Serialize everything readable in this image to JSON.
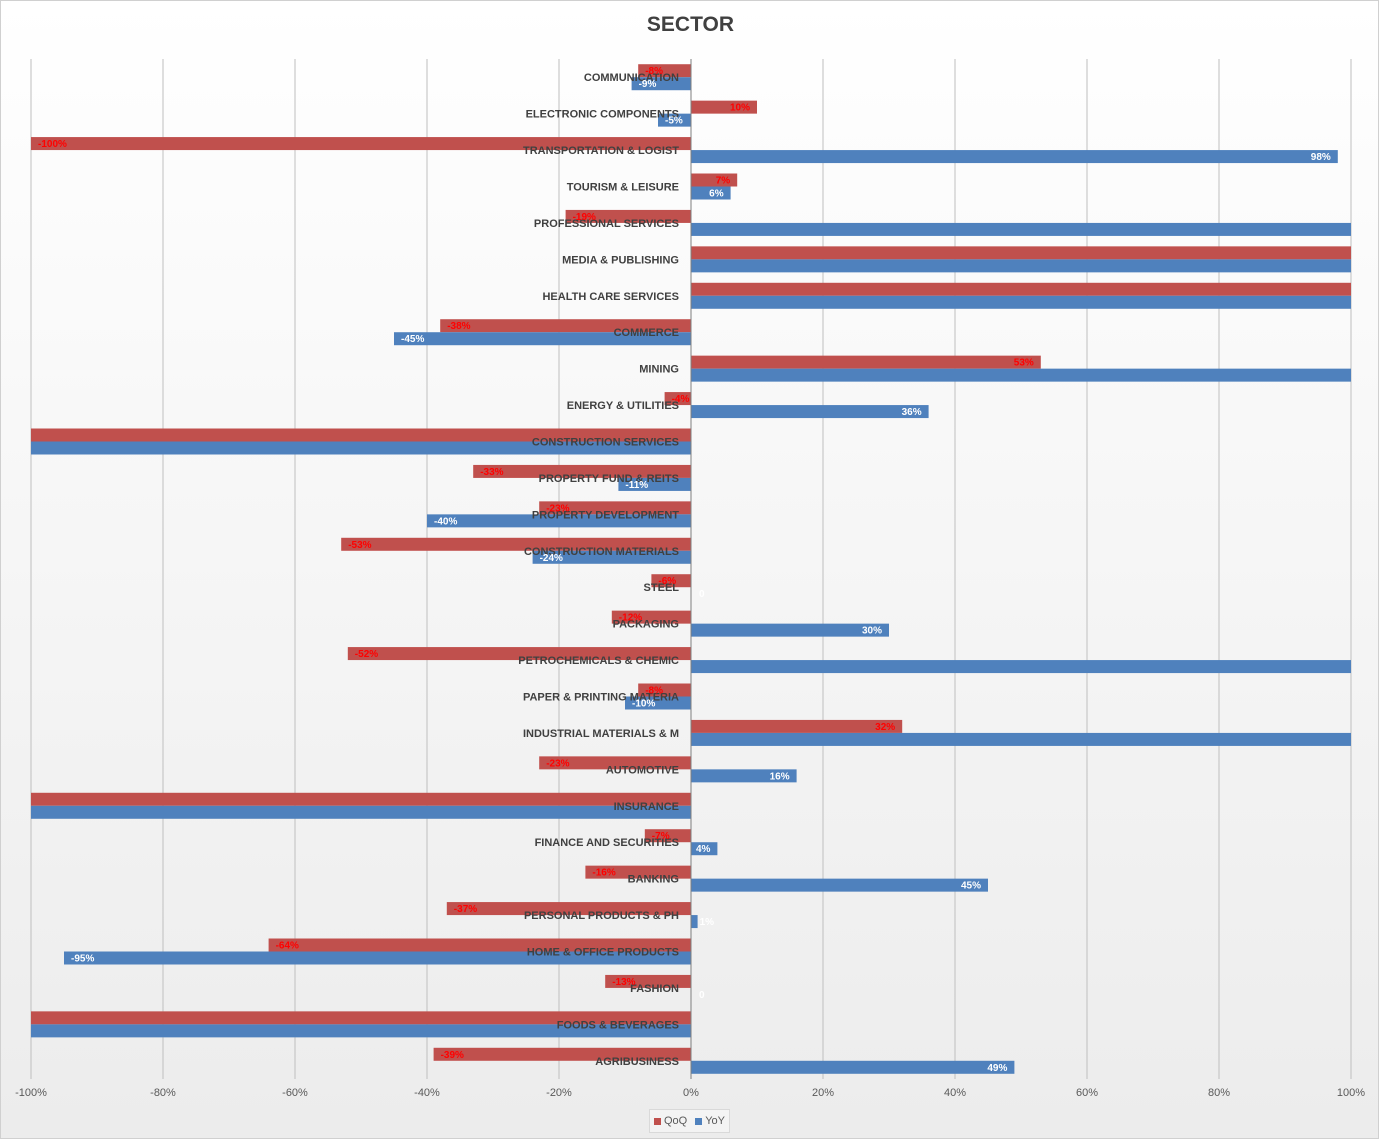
{
  "chart_data": {
    "type": "bar",
    "orientation": "horizontal",
    "title": "SECTOR",
    "xlabel": "",
    "ylabel": "",
    "xlim": [
      -1,
      1
    ],
    "tick_values": [
      -1,
      -0.8,
      -0.6,
      -0.4,
      -0.2,
      0,
      0.2,
      0.4,
      0.6,
      0.8,
      1
    ],
    "tick_labels": [
      "-100%",
      "-80%",
      "-60%",
      "-40%",
      "-20%",
      "0%",
      "20%",
      "40%",
      "60%",
      "80%",
      "100%"
    ],
    "grid": true,
    "legend_position": "bottom",
    "categories": [
      "COMMUNICATION",
      "ELECTRONIC COMPONENTS",
      "TRANSPORTATION & LOGIST",
      "TOURISM & LEISURE",
      "PROFESSIONAL SERVICES",
      "MEDIA & PUBLISHING",
      "HEALTH CARE SERVICES",
      "COMMERCE",
      "MINING",
      "ENERGY & UTILITIES",
      "CONSTRUCTION SERVICES",
      "PROPERTY FUND & REITS",
      "PROPERTY DEVELOPMENT",
      "CONSTRUCTION MATERIALS",
      "STEEL",
      "PACKAGING",
      "PETROCHEMICALS & CHEMIC",
      "PAPER & PRINTING MATERIA",
      "INDUSTRIAL MATERIALS & M",
      "AUTOMOTIVE",
      "INSURANCE",
      "FINANCE AND SECURITIES",
      "BANKING",
      "PERSONAL PRODUCTS & PH",
      "HOME & OFFICE PRODUCTS",
      "FASHION",
      "FOODS & BEVERAGES",
      "AGRIBUSINESS"
    ],
    "series": [
      {
        "name": "QoQ",
        "color": "#c0504d",
        "label_color": "#ff0000",
        "values": [
          -0.08,
          0.1,
          -1.0,
          0.07,
          -0.19,
          1.0,
          1.0,
          -0.38,
          0.53,
          -0.04,
          -1.0,
          -0.33,
          -0.23,
          -0.53,
          -0.06,
          -0.12,
          -0.52,
          -0.08,
          0.32,
          -0.23,
          -1.0,
          -0.07,
          -0.16,
          -0.37,
          -0.64,
          -0.13,
          -1.0,
          -0.39
        ],
        "labels": [
          "-8%",
          "10%",
          "-100%",
          "7%",
          "-19%",
          "",
          "",
          "-38%",
          "53%",
          "-4%",
          "",
          "-33%",
          "-23%",
          "-53%",
          "-6%",
          "-12%",
          "-52%",
          "-8%",
          "32%",
          "-23%",
          "",
          "-7%",
          "-16%",
          "-37%",
          "-64%",
          "-13%",
          "",
          "-39%"
        ]
      },
      {
        "name": "YoY",
        "color": "#4f81bd",
        "label_color": "#ffffff",
        "values": [
          -0.09,
          -0.05,
          0.98,
          0.06,
          1.0,
          1.0,
          1.0,
          -0.45,
          1.0,
          0.36,
          -1.0,
          -0.11,
          -0.4,
          -0.24,
          0,
          0.3,
          1.0,
          -0.1,
          1.0,
          0.16,
          -1.0,
          0.04,
          0.45,
          0.01,
          -0.95,
          0,
          -1.0,
          0.49
        ],
        "labels": [
          "-9%",
          "-5%",
          "98%",
          "6%",
          "",
          "",
          "",
          "-45%",
          "",
          "36%",
          "",
          "-11%",
          "-40%",
          "-24%",
          "0",
          "30%",
          "",
          "-10%",
          "",
          "16%",
          "",
          "4%",
          "45%",
          "1%",
          "-95%",
          "0",
          "",
          "49%"
        ]
      }
    ]
  }
}
